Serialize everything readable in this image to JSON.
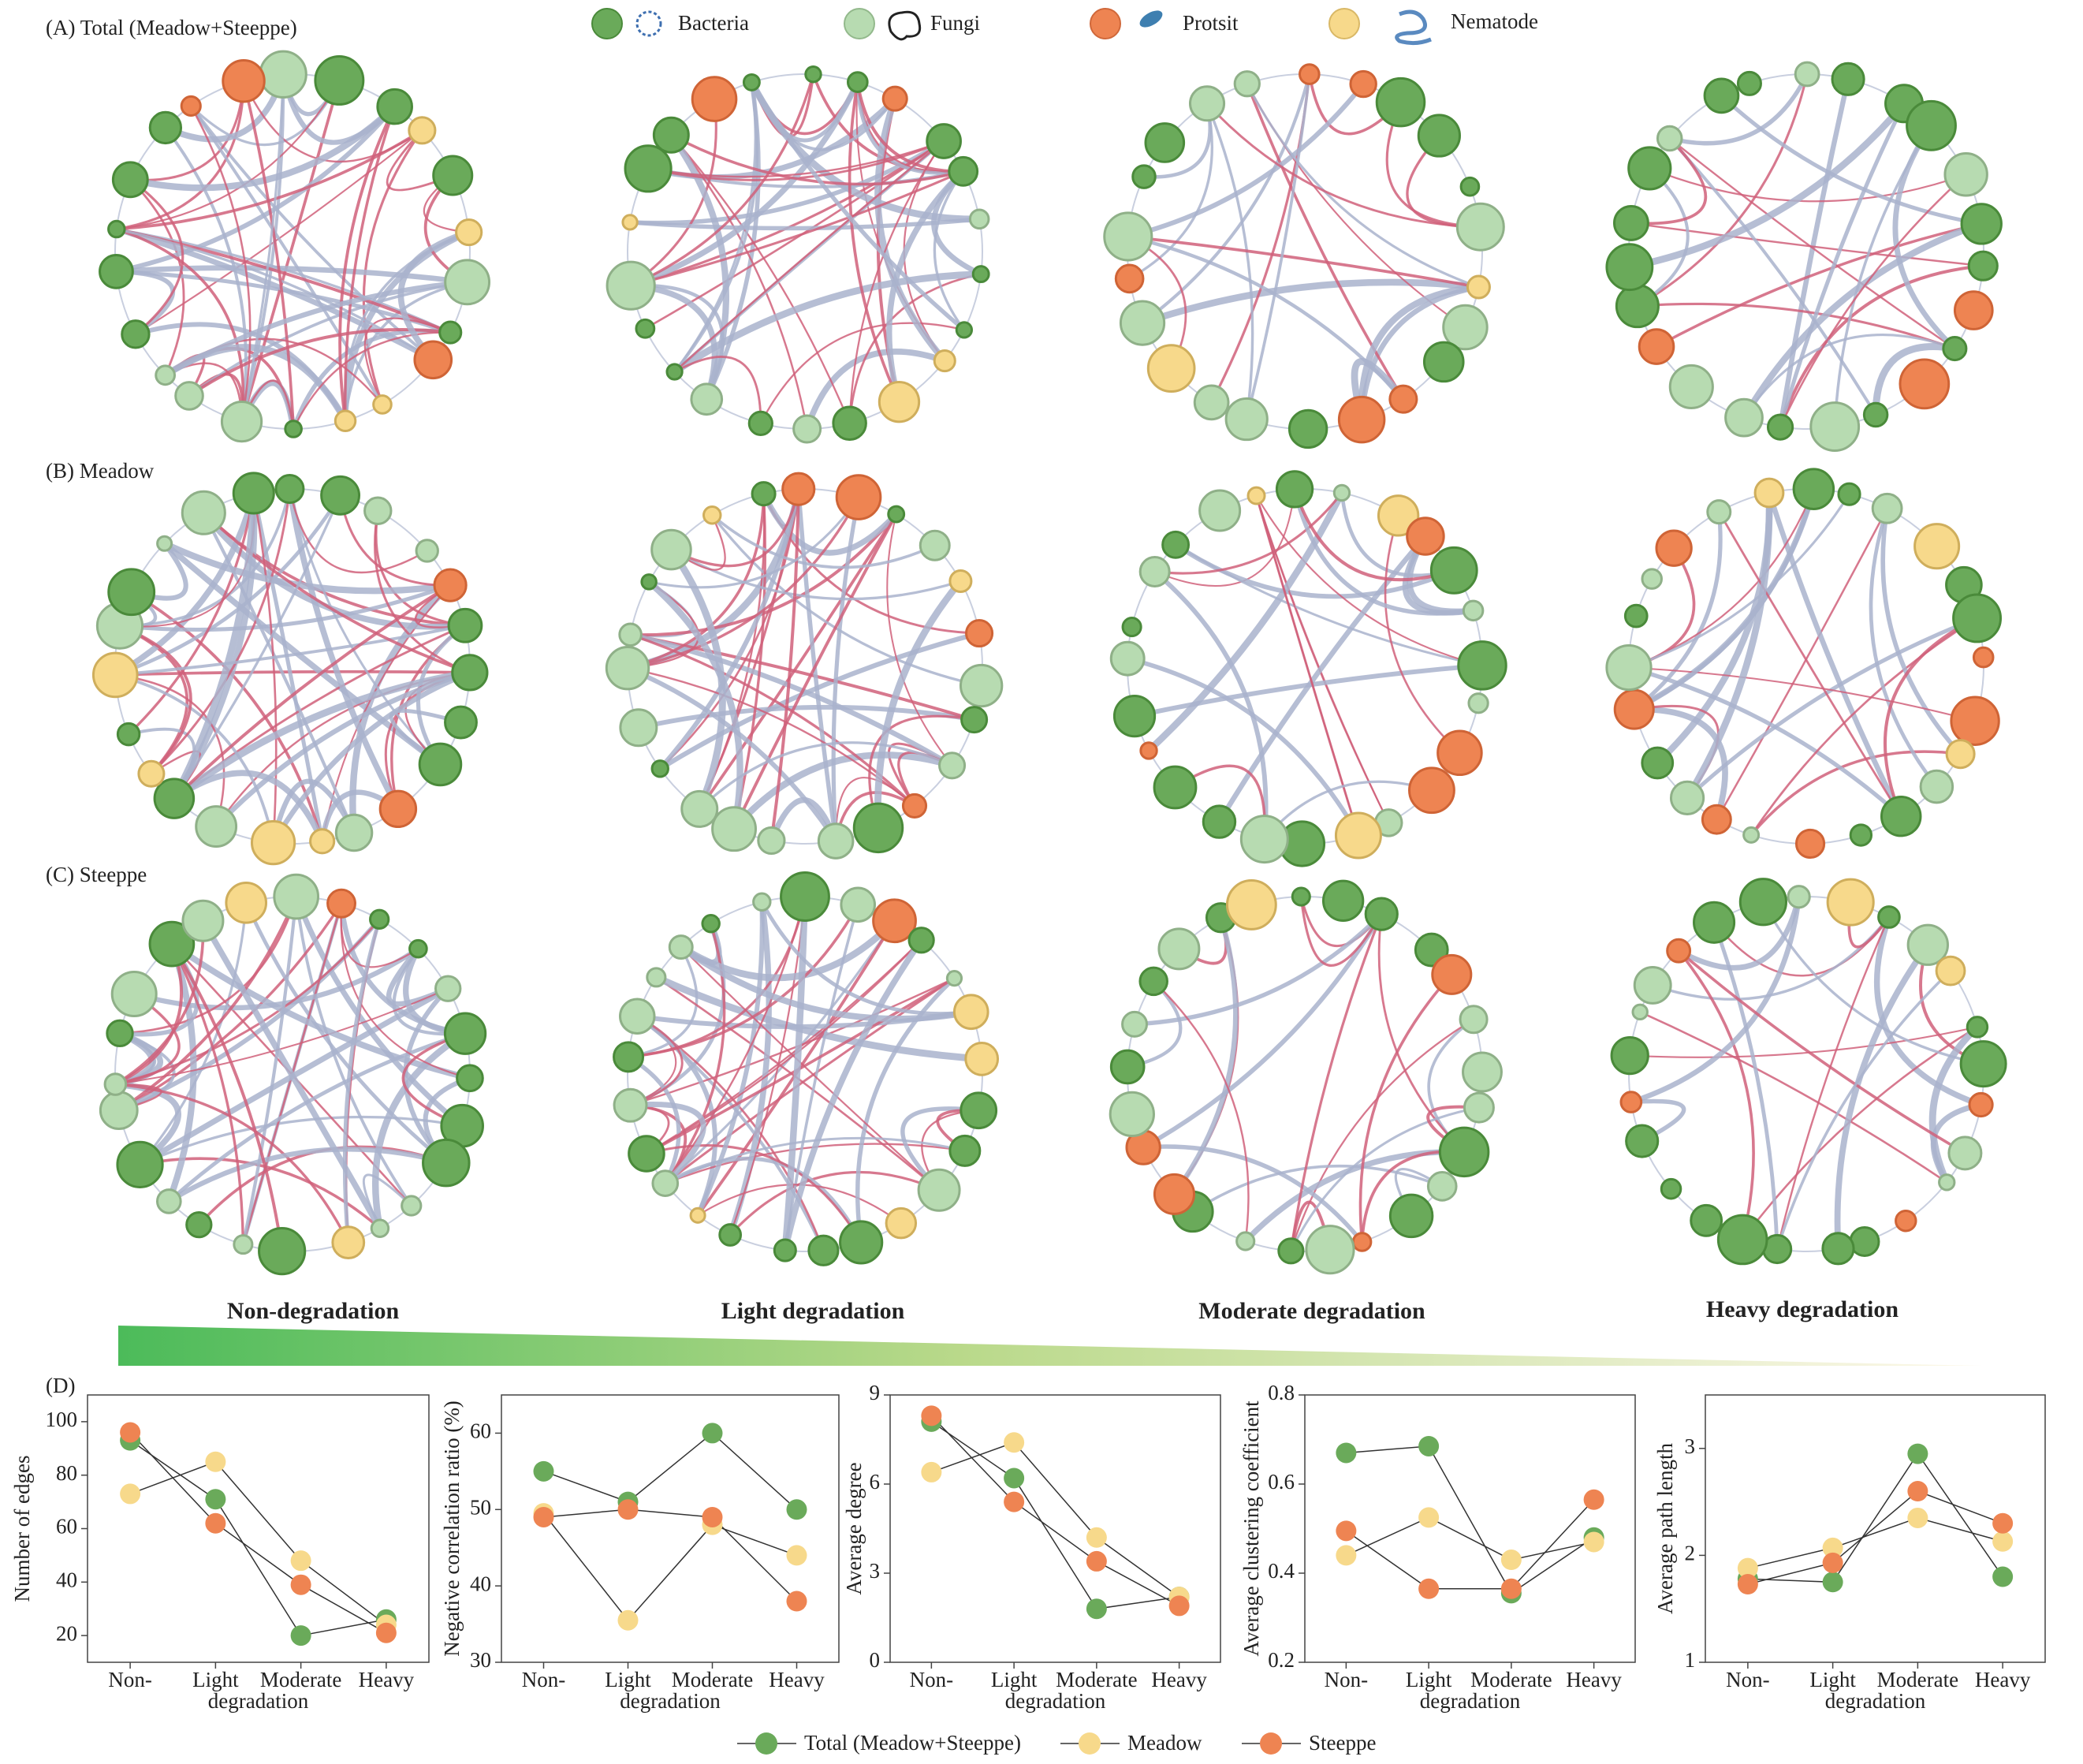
{
  "panels": {
    "A": "(A) Total (Meadow+Steeppe)",
    "B": "(B) Meadow",
    "C": "(C) Steeppe",
    "D": "(D)"
  },
  "node_legend": [
    "Bacteria",
    "Fungi",
    "Protsit",
    "Nematode"
  ],
  "columns": [
    "Non-degradation",
    "Light degradation",
    "Moderate degradation",
    "Heavy degradation"
  ],
  "chart_data": [
    {
      "type": "line",
      "y_label": "Number of edges",
      "x_label": "degradation",
      "categories": [
        "Non-",
        "Light",
        "Moderate",
        "Heavy"
      ],
      "ylim": [
        10,
        110
      ],
      "yticks": [
        20,
        40,
        60,
        80,
        100
      ],
      "series": [
        {
          "name": "Total (Meadow+Steeppe)",
          "color": "#6aaa5a",
          "values": [
            93,
            71,
            20,
            26
          ]
        },
        {
          "name": "Meadow",
          "color": "#f7d98b",
          "values": [
            73,
            85,
            48,
            24
          ]
        },
        {
          "name": "Steeppe",
          "color": "#ee8452",
          "values": [
            96,
            62,
            39,
            21
          ]
        }
      ]
    },
    {
      "type": "line",
      "y_label": "Negative correlation ratio (%)",
      "x_label": "degradation",
      "categories": [
        "Non-",
        "Light",
        "Moderate",
        "Heavy"
      ],
      "ylim": [
        30,
        65
      ],
      "yticks": [
        30,
        40,
        50,
        60
      ],
      "series": [
        {
          "color": "#6aaa5a",
          "values": [
            55,
            51,
            60,
            50
          ]
        },
        {
          "color": "#f7d98b",
          "values": [
            49.5,
            35.5,
            48,
            44
          ]
        },
        {
          "color": "#ee8452",
          "values": [
            49,
            50,
            49,
            38
          ]
        }
      ]
    },
    {
      "type": "line",
      "y_label": "Average degree",
      "x_label": "degradation",
      "categories": [
        "Non-",
        "Light",
        "Moderate",
        "Heavy"
      ],
      "ylim": [
        0,
        9
      ],
      "yticks": [
        0,
        3,
        6,
        9
      ],
      "series": [
        {
          "color": "#6aaa5a",
          "values": [
            8.1,
            6.2,
            1.8,
            2.2
          ]
        },
        {
          "color": "#f7d98b",
          "values": [
            6.4,
            7.4,
            4.2,
            2.2
          ]
        },
        {
          "color": "#ee8452",
          "values": [
            8.3,
            5.4,
            3.4,
            1.9
          ]
        }
      ]
    },
    {
      "type": "line",
      "y_label": "Average clustering coefficient",
      "x_label": "degradation",
      "categories": [
        "Non-",
        "Light",
        "Moderate",
        "Heavy"
      ],
      "ylim": [
        0.2,
        0.8
      ],
      "yticks": [
        0.2,
        0.4,
        0.6,
        0.8
      ],
      "series": [
        {
          "color": "#6aaa5a",
          "values": [
            0.67,
            0.685,
            0.355,
            0.48
          ]
        },
        {
          "color": "#f7d98b",
          "values": [
            0.44,
            0.525,
            0.43,
            0.47
          ]
        },
        {
          "color": "#ee8452",
          "values": [
            0.495,
            0.365,
            0.365,
            0.565
          ]
        }
      ]
    },
    {
      "type": "line",
      "y_label": "Average path length",
      "x_label": "degradation",
      "categories": [
        "Non-",
        "Light",
        "Moderate",
        "Heavy"
      ],
      "ylim": [
        1,
        3.5
      ],
      "yticks": [
        1,
        2,
        3
      ],
      "series": [
        {
          "color": "#6aaa5a",
          "values": [
            1.78,
            1.75,
            2.95,
            1.8
          ]
        },
        {
          "color": "#f7d98b",
          "values": [
            1.88,
            2.07,
            2.35,
            2.13
          ]
        },
        {
          "color": "#ee8452",
          "values": [
            1.73,
            1.93,
            2.6,
            2.3
          ]
        }
      ]
    }
  ]
}
